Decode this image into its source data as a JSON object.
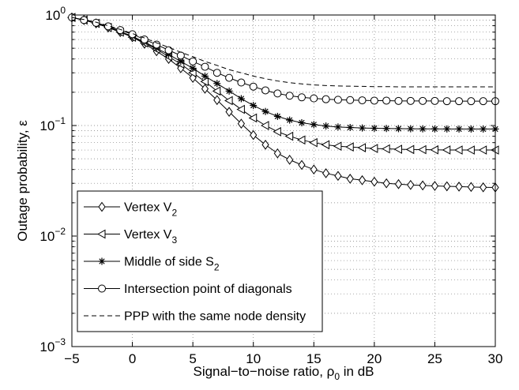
{
  "chart_data": {
    "type": "line",
    "xlabel": "Signal−to−noise ratio, ρ",
    "xlabel_sub": "0",
    "xlabel_suffix": " in dB",
    "ylabel": "Outage probability, ε",
    "xlim": [
      -5,
      30
    ],
    "ylim": [
      0.001,
      1
    ],
    "y_scale": "log",
    "grid": true,
    "legend_position": "bottom-left",
    "x_ticks": [
      -5,
      0,
      5,
      10,
      15,
      20,
      25,
      30
    ],
    "x_tick_labels": [
      "−5",
      "0",
      "5",
      "10",
      "15",
      "20",
      "25",
      "30"
    ],
    "y_ticks": [
      {
        "value": 0.001,
        "base": "10",
        "exp": "−3"
      },
      {
        "value": 0.01,
        "base": "10",
        "exp": "−2"
      },
      {
        "value": 0.1,
        "base": "10",
        "exp": "−1"
      },
      {
        "value": 1,
        "base": "10",
        "exp": "0"
      }
    ],
    "x": [
      -5,
      -4,
      -3,
      -2,
      -1,
      0,
      1,
      2,
      3,
      4,
      5,
      6,
      7,
      8,
      9,
      10,
      11,
      12,
      13,
      14,
      15,
      16,
      17,
      18,
      19,
      20,
      21,
      22,
      23,
      24,
      25,
      26,
      27,
      28,
      29,
      30
    ],
    "series": [
      {
        "name": "Vertex V",
        "name_sub": "2",
        "marker": "diamond",
        "dash": false,
        "values": [
          0.95,
          0.9,
          0.84,
          0.77,
          0.7,
          0.63,
          0.55,
          0.47,
          0.4,
          0.33,
          0.27,
          0.215,
          0.17,
          0.133,
          0.104,
          0.082,
          0.067,
          0.056,
          0.049,
          0.044,
          0.04,
          0.037,
          0.035,
          0.033,
          0.032,
          0.031,
          0.03,
          0.0295,
          0.029,
          0.0287,
          0.0284,
          0.0282,
          0.028,
          0.0278,
          0.0276,
          0.0275
        ]
      },
      {
        "name": "Vertex V",
        "name_sub": "3",
        "marker": "triangle-left",
        "dash": false,
        "values": [
          0.95,
          0.9,
          0.84,
          0.77,
          0.7,
          0.63,
          0.56,
          0.49,
          0.42,
          0.36,
          0.3,
          0.25,
          0.205,
          0.168,
          0.14,
          0.117,
          0.1,
          0.088,
          0.08,
          0.074,
          0.07,
          0.067,
          0.065,
          0.064,
          0.063,
          0.062,
          0.0615,
          0.061,
          0.0607,
          0.0605,
          0.0603,
          0.0601,
          0.06,
          0.06,
          0.06,
          0.06
        ]
      },
      {
        "name": "Middle of side S",
        "name_sub": "2",
        "marker": "star",
        "dash": false,
        "values": [
          0.95,
          0.9,
          0.84,
          0.78,
          0.71,
          0.64,
          0.57,
          0.5,
          0.44,
          0.38,
          0.33,
          0.28,
          0.24,
          0.205,
          0.175,
          0.152,
          0.134,
          0.121,
          0.112,
          0.106,
          0.102,
          0.099,
          0.097,
          0.096,
          0.095,
          0.0945,
          0.094,
          0.0937,
          0.0935,
          0.0933,
          0.0932,
          0.0931,
          0.093,
          0.093,
          0.093,
          0.093
        ]
      },
      {
        "name": "Intersection point of diagonals",
        "name_sub": "",
        "marker": "circle",
        "dash": false,
        "values": [
          0.95,
          0.9,
          0.85,
          0.79,
          0.73,
          0.67,
          0.6,
          0.54,
          0.48,
          0.43,
          0.38,
          0.34,
          0.3,
          0.27,
          0.245,
          0.225,
          0.208,
          0.195,
          0.186,
          0.18,
          0.176,
          0.173,
          0.171,
          0.17,
          0.169,
          0.168,
          0.168,
          0.167,
          0.167,
          0.167,
          0.167,
          0.166,
          0.166,
          0.166,
          0.166,
          0.166
        ]
      },
      {
        "name": "PPP with the same node density",
        "name_sub": "",
        "marker": "none",
        "dash": true,
        "values": [
          0.95,
          0.91,
          0.86,
          0.8,
          0.74,
          0.68,
          0.62,
          0.56,
          0.51,
          0.46,
          0.42,
          0.38,
          0.35,
          0.32,
          0.3,
          0.28,
          0.265,
          0.253,
          0.244,
          0.238,
          0.233,
          0.23,
          0.228,
          0.227,
          0.226,
          0.225,
          0.225,
          0.224,
          0.224,
          0.224,
          0.224,
          0.224,
          0.224,
          0.224,
          0.224,
          0.224
        ]
      }
    ]
  }
}
